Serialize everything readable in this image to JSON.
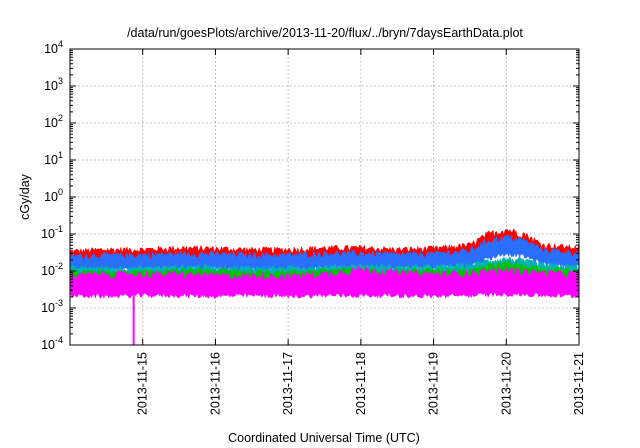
{
  "chart_data": {
    "type": "line",
    "title": "/data/run/goesPlots/archive/2013-11-20/flux/../bryn/7daysEarthData.plot",
    "xlabel": "Coordinated Universal Time (UTC)",
    "ylabel": "cGy/day",
    "yscale": "log",
    "ylim": [
      0.0001,
      10000
    ],
    "xlim": [
      "2013-11-14",
      "2013-11-21"
    ],
    "grid": true,
    "x_ticks": [
      "2013-11-15",
      "2013-11-16",
      "2013-11-17",
      "2013-11-18",
      "2013-11-19",
      "2013-11-20",
      "2013-11-21"
    ],
    "y_ticks": [
      {
        "value": 0.0001,
        "base": "10",
        "exp": "-4"
      },
      {
        "value": 0.001,
        "base": "10",
        "exp": "-3"
      },
      {
        "value": 0.01,
        "base": "10",
        "exp": "-2"
      },
      {
        "value": 0.1,
        "base": "10",
        "exp": "-1"
      },
      {
        "value": 1,
        "base": "10",
        "exp": "0"
      },
      {
        "value": 10,
        "base": "10",
        "exp": "1"
      },
      {
        "value": 100,
        "base": "10",
        "exp": "2"
      },
      {
        "value": 1000,
        "base": "10",
        "exp": "3"
      },
      {
        "value": 10000,
        "base": "10",
        "exp": "4"
      }
    ],
    "x": [
      "2013-11-14",
      "2013-11-14 12:00",
      "2013-11-15",
      "2013-11-15 12:00",
      "2013-11-16",
      "2013-11-16 12:00",
      "2013-11-17",
      "2013-11-17 12:00",
      "2013-11-18",
      "2013-11-18 12:00",
      "2013-11-19",
      "2013-11-19 12:00",
      "2013-11-19 18:00",
      "2013-11-20",
      "2013-11-20 06:00",
      "2013-11-20 12:00",
      "2013-11-21"
    ],
    "series": [
      {
        "color": "#ff0000",
        "low": [
          0.014,
          0.015,
          0.016,
          0.015,
          0.016,
          0.015,
          0.015,
          0.016,
          0.017,
          0.016,
          0.016,
          0.018,
          0.03,
          0.04,
          0.035,
          0.022,
          0.018
        ],
        "high": [
          0.04,
          0.045,
          0.045,
          0.05,
          0.048,
          0.045,
          0.045,
          0.05,
          0.05,
          0.045,
          0.048,
          0.06,
          0.12,
          0.16,
          0.12,
          0.06,
          0.05
        ]
      },
      {
        "color": "#2a6fff",
        "low": [
          0.01,
          0.011,
          0.011,
          0.011,
          0.012,
          0.011,
          0.011,
          0.012,
          0.012,
          0.012,
          0.012,
          0.014,
          0.022,
          0.03,
          0.025,
          0.016,
          0.013
        ],
        "high": [
          0.03,
          0.032,
          0.032,
          0.035,
          0.034,
          0.032,
          0.032,
          0.035,
          0.036,
          0.033,
          0.035,
          0.042,
          0.08,
          0.1,
          0.08,
          0.045,
          0.036
        ]
      },
      {
        "color": "#00b3b3",
        "low": [
          0.006,
          0.006,
          0.006,
          0.006,
          0.006,
          0.006,
          0.006,
          0.006,
          0.007,
          0.006,
          0.006,
          0.007,
          0.009,
          0.01,
          0.009,
          0.007,
          0.006
        ],
        "high": [
          0.014,
          0.014,
          0.014,
          0.015,
          0.015,
          0.014,
          0.014,
          0.015,
          0.016,
          0.015,
          0.015,
          0.017,
          0.022,
          0.025,
          0.022,
          0.017,
          0.015
        ]
      },
      {
        "color": "#00c000",
        "low": [
          0.005,
          0.005,
          0.005,
          0.005,
          0.005,
          0.005,
          0.005,
          0.005,
          0.005,
          0.005,
          0.005,
          0.005,
          0.006,
          0.007,
          0.006,
          0.005,
          0.005
        ],
        "high": [
          0.011,
          0.011,
          0.011,
          0.012,
          0.012,
          0.011,
          0.011,
          0.012,
          0.013,
          0.012,
          0.012,
          0.013,
          0.017,
          0.019,
          0.017,
          0.013,
          0.012
        ]
      },
      {
        "color": "#ff00ff",
        "low": [
          0.0022,
          0.0021,
          0.0022,
          0.0022,
          0.0021,
          0.0022,
          0.0021,
          0.0022,
          0.0022,
          0.0022,
          0.0021,
          0.0022,
          0.0023,
          0.0024,
          0.0023,
          0.0022,
          0.0021
        ],
        "high": [
          0.009,
          0.01,
          0.01,
          0.01,
          0.009,
          0.009,
          0.009,
          0.01,
          0.014,
          0.011,
          0.01,
          0.011,
          0.012,
          0.013,
          0.012,
          0.011,
          0.01
        ]
      }
    ],
    "annotations": [
      {
        "type": "dip",
        "color": "#ff00ff",
        "x": "2013-11-14 21:00",
        "y_min": 0.0001
      }
    ]
  }
}
